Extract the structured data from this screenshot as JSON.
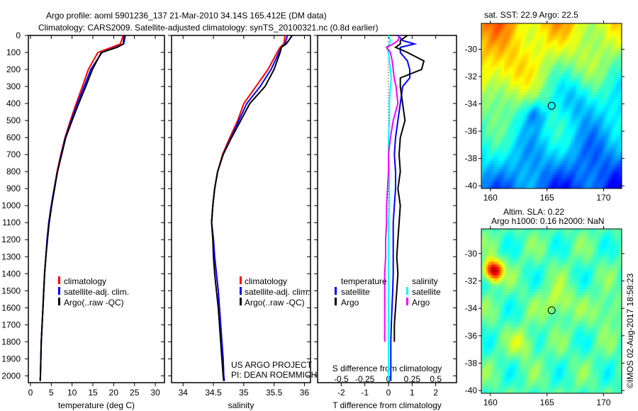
{
  "title_line1": "Argo profile: aoml 5901236_137 21-Mar-2010 34.14S 165.412E (DM data)",
  "title_line2": "Climatology: CARS2009. Satellite-adjusted climatology: synTS_20100321.nc (0.8d earlier)",
  "colors": {
    "climatology": "#ff0000",
    "satellite": "#0000ff",
    "argo": "#000000",
    "sal_satellite": "#00ffff",
    "sal_argo": "#ff00ff"
  },
  "project": {
    "line1": "US ARGO PROJECT",
    "line2": "PI: DEAN ROEMMICH"
  },
  "credit": "©IMOS 02-Aug-2017 18:58:23",
  "legend_profiles": [
    "climatology",
    "satellite-adj. clim.",
    "Argo(..raw -QC)"
  ],
  "legend_diff": {
    "temp_title": "temperature",
    "temp_sat": "satellite",
    "temp_argo": "Argo",
    "sal_title": "salinity",
    "sal_sat": "satellite",
    "sal_argo": "Argo"
  },
  "chart_data": [
    {
      "type": "line",
      "name": "temperature-profile",
      "xlabel": "temperature (deg C)",
      "ylabel": "",
      "xlim": [
        -0.5,
        32.2
      ],
      "ylim": [
        2040,
        0
      ],
      "xticks": [
        0,
        5,
        10,
        15,
        20,
        25,
        30
      ],
      "yticks": [
        0,
        100,
        200,
        300,
        400,
        500,
        600,
        700,
        800,
        900,
        1000,
        1100,
        1200,
        1300,
        1400,
        1500,
        1600,
        1700,
        1800,
        1900,
        2000
      ],
      "depth": [
        0,
        50,
        70,
        100,
        200,
        300,
        400,
        500,
        600,
        700,
        800,
        900,
        1000,
        1100,
        1200,
        1300,
        1400,
        1500,
        1600,
        1700,
        1800,
        1900,
        2000,
        2030
      ],
      "series": [
        {
          "name": "climatology",
          "color": "#ff0000",
          "values": [
            22.3,
            21.6,
            19.5,
            16.2,
            13.9,
            12.5,
            11.0,
            9.6,
            8.3,
            7.3,
            6.4,
            5.7,
            5.0,
            4.4,
            4.0,
            3.7,
            3.4,
            3.2,
            3.0,
            2.8,
            2.6,
            2.5,
            2.4,
            2.35
          ]
        },
        {
          "name": "satellite-adj. clim.",
          "color": "#0000ff",
          "values": [
            22.8,
            22.4,
            20.5,
            17.2,
            14.5,
            12.9,
            11.3,
            9.8,
            8.4,
            7.4,
            6.5,
            5.7,
            5.0,
            4.4,
            4.0,
            3.7,
            3.4,
            3.2,
            3.0,
            2.8,
            2.6,
            2.5,
            2.4,
            2.35
          ]
        },
        {
          "name": "Argo(..raw -QC)",
          "color": "#000000",
          "values": [
            22.5,
            22.3,
            20.8,
            17.0,
            14.9,
            13.3,
            11.6,
            10.0,
            8.5,
            7.5,
            6.5,
            5.8,
            5.1,
            4.5,
            4.1,
            3.7,
            3.4,
            3.2,
            3.0,
            2.8,
            2.6,
            2.5,
            2.4,
            2.35
          ]
        }
      ]
    },
    {
      "type": "line",
      "name": "salinity-profile",
      "xlabel": "salinity",
      "ylabel": "",
      "xlim": [
        33.81,
        36.1
      ],
      "ylim": [
        2040,
        0
      ],
      "xticks": [
        34,
        34.5,
        35,
        35.5,
        36
      ],
      "depth": [
        0,
        50,
        70,
        100,
        200,
        300,
        400,
        500,
        600,
        700,
        800,
        900,
        1000,
        1100,
        1200,
        1300,
        1400,
        1500,
        1600,
        1700,
        1800,
        1900,
        2000,
        2030
      ],
      "series": [
        {
          "name": "climatology",
          "color": "#ff0000",
          "values": [
            35.68,
            35.66,
            35.6,
            35.55,
            35.4,
            35.2,
            35.0,
            34.9,
            34.77,
            34.65,
            34.57,
            34.52,
            34.49,
            34.47,
            34.5,
            34.52,
            34.55,
            34.58,
            34.6,
            34.62,
            34.64,
            34.66,
            34.67,
            34.68
          ]
        },
        {
          "name": "satellite-adj. clim.",
          "color": "#0000ff",
          "values": [
            35.72,
            35.68,
            35.62,
            35.58,
            35.45,
            35.27,
            35.05,
            34.92,
            34.79,
            34.66,
            34.57,
            34.52,
            34.49,
            34.47,
            34.5,
            34.52,
            34.55,
            34.58,
            34.6,
            34.62,
            34.64,
            34.66,
            34.67,
            34.68
          ]
        },
        {
          "name": "Argo(..raw -QC)",
          "color": "#000000",
          "values": [
            35.8,
            35.7,
            35.62,
            35.6,
            35.5,
            35.35,
            35.1,
            34.95,
            34.8,
            34.66,
            34.57,
            34.52,
            34.49,
            34.47,
            34.49,
            34.5,
            34.52,
            34.55,
            34.58,
            34.6,
            34.62,
            34.64,
            34.66,
            34.67
          ]
        }
      ]
    },
    {
      "type": "line",
      "name": "difference-profile",
      "xlabel": "T difference from climatology",
      "x2label": "S difference from climatology",
      "xlim": [
        -3.0,
        2.88
      ],
      "ylim": [
        2040,
        0
      ],
      "xticks": [
        -2,
        -1,
        0,
        1,
        2
      ],
      "x2ticks": [
        -0.5,
        -0.25,
        0,
        0.25,
        0.5
      ],
      "x2tick_labels": [
        "-0.5",
        "-0.25",
        "0",
        "0.25",
        "0.5"
      ],
      "depth": [
        0,
        30,
        50,
        70,
        100,
        150,
        200,
        250,
        300,
        400,
        500,
        600,
        700,
        800,
        900,
        1000,
        1100,
        1200,
        1300,
        1400,
        1500,
        1600,
        1700,
        1800,
        1900,
        2000,
        2030
      ],
      "series": [
        {
          "name": "temperature satellite",
          "axis": "T",
          "color": "#0000ff",
          "values": [
            0.4,
            0.6,
            1.1,
            0.5,
            0.5,
            0.8,
            0.9,
            0.9,
            0.6,
            0.5,
            0.4,
            0.3,
            0.25,
            0.3,
            0.3,
            0.25,
            0.2,
            0.2,
            0.2,
            0.2,
            0.18,
            0.15,
            0.12,
            0.1,
            0.1,
            0.1,
            0.1
          ]
        },
        {
          "name": "temperature Argo",
          "axis": "T",
          "color": "#000000",
          "values": [
            0.8,
            0.5,
            0.5,
            0.3,
            0.8,
            1.5,
            1.4,
            0.5,
            0.5,
            0.6,
            0.7,
            0.5,
            0.45,
            0.5,
            0.4,
            0.5,
            0.45,
            0.4,
            0.35,
            0.4,
            0.35,
            0.3,
            0.25,
            0.25,
            null,
            null,
            null
          ]
        },
        {
          "name": "salinity satellite",
          "axis": "S",
          "color": "#00ffff",
          "values": [
            0.0,
            0.02,
            0.01,
            -0.02,
            0.0,
            0.01,
            0.02,
            0.03,
            0.02,
            0.01,
            0.01,
            0.0,
            0.0,
            0.01,
            0.01,
            0.01,
            0.0,
            0.0,
            0.0,
            0.0,
            0.0,
            0.0,
            0.0,
            0.0,
            0.0,
            0.0,
            0.0
          ]
        },
        {
          "name": "salinity Argo",
          "axis": "S",
          "color": "#ff00ff",
          "values": [
            0.12,
            0.1,
            0.05,
            -0.02,
            0.02,
            0.04,
            0.05,
            0.06,
            0.08,
            0.1,
            0.05,
            0.02,
            0.0,
            0.0,
            -0.01,
            -0.02,
            -0.02,
            -0.03,
            -0.03,
            -0.04,
            -0.04,
            -0.04,
            -0.04,
            -0.04,
            null,
            null,
            null
          ]
        }
      ]
    },
    {
      "type": "heatmap",
      "name": "sst-map",
      "title": "sat. SST: 22.9 Argo: 22.5",
      "xlim": [
        159.2,
        171.6
      ],
      "ylim": [
        -40.2,
        -28.1
      ],
      "xticks": [
        160,
        165,
        170
      ],
      "yticks": [
        -30,
        -32,
        -34,
        -36,
        -38,
        -40
      ],
      "marker": {
        "lon": 165.412,
        "lat": -34.14
      }
    },
    {
      "type": "heatmap",
      "name": "sla-map",
      "title_line1": "Altim. SLA: 0.22",
      "title_line2": "Argo h1000: 0.16 h2000: NaN",
      "xlim": [
        159.2,
        171.6
      ],
      "ylim": [
        -40.2,
        -28.2
      ],
      "xticks": [
        160,
        165,
        170
      ],
      "yticks": [
        -30,
        -32,
        -34,
        -36,
        -38,
        -40
      ],
      "marker": {
        "lon": 165.412,
        "lat": -34.14
      }
    }
  ]
}
